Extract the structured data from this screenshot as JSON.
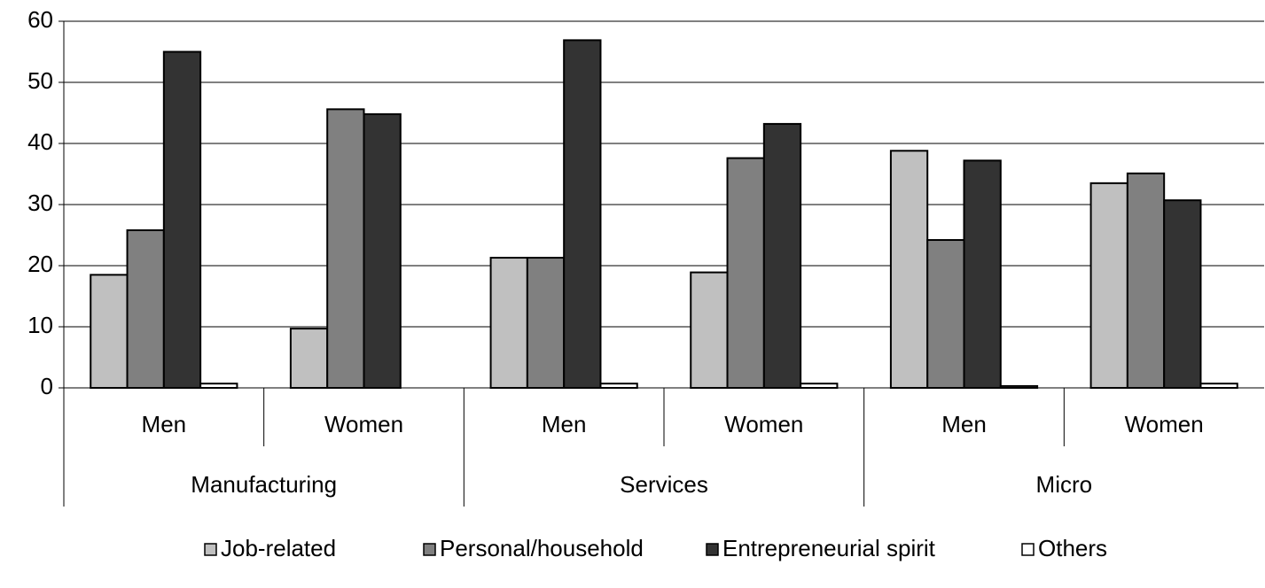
{
  "chart_data": {
    "type": "bar",
    "categories": [
      "Men",
      "Women",
      "Men",
      "Women",
      "Men",
      "Women"
    ],
    "group_labels": [
      "Manufacturing",
      "Services",
      "Micro"
    ],
    "series": [
      {
        "name": "Job-related",
        "color": "#c0c0c0",
        "values": [
          18.5,
          9.7,
          21.3,
          18.9,
          38.8,
          33.5
        ]
      },
      {
        "name": "Personal/household",
        "color": "#808080",
        "values": [
          25.8,
          45.6,
          21.3,
          37.6,
          24.2,
          35.1
        ]
      },
      {
        "name": "Entrepreneurial spirit",
        "color": "#333333",
        "values": [
          55,
          44.8,
          56.9,
          43.2,
          37.2,
          30.7
        ]
      },
      {
        "name": "Others",
        "color": "#ffffff",
        "values": [
          0.7,
          0,
          0.7,
          0.7,
          0.3,
          0.7
        ]
      }
    ],
    "ylim": [
      0,
      60
    ],
    "yticks": [
      0,
      10,
      20,
      30,
      40,
      50,
      60
    ],
    "grid": true,
    "legend": "bottom"
  }
}
